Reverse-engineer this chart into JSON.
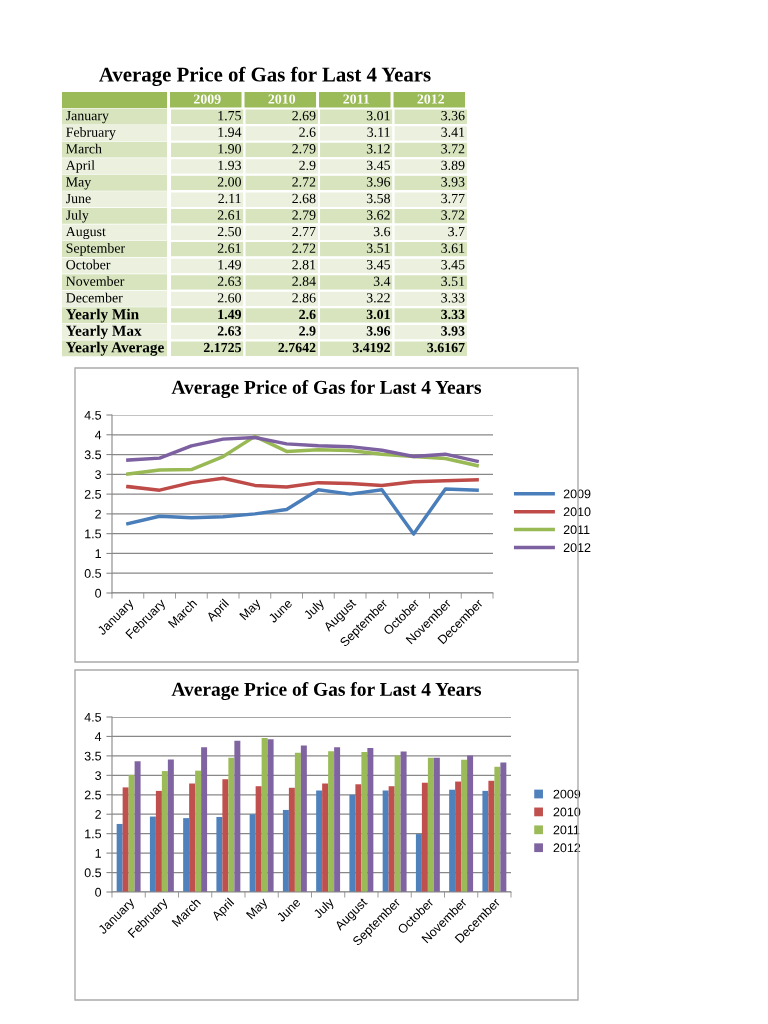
{
  "chart_data": [
    {
      "type": "heatmap",
      "title": "Average Price of Gas for Last 4 Years",
      "categories": [
        "2009",
        "2010",
        "2011",
        "2012"
      ],
      "y_categories": [
        "January",
        "February",
        "March",
        "April",
        "May",
        "June",
        "July",
        "August",
        "September",
        "October",
        "November",
        "December",
        "Yearly Min",
        "Yearly Max",
        "Yearly Average"
      ],
      "cells": [
        [
          1.75,
          2.69,
          3.01,
          3.36
        ],
        [
          1.94,
          2.6,
          3.11,
          3.41
        ],
        [
          1.9,
          2.79,
          3.12,
          3.72
        ],
        [
          1.93,
          2.9,
          3.45,
          3.89
        ],
        [
          2.0,
          2.72,
          3.96,
          3.93
        ],
        [
          2.11,
          2.68,
          3.58,
          3.77
        ],
        [
          2.61,
          2.79,
          3.62,
          3.72
        ],
        [
          2.5,
          2.77,
          3.6,
          3.7
        ],
        [
          2.61,
          2.72,
          3.51,
          3.61
        ],
        [
          1.49,
          2.81,
          3.45,
          3.45
        ],
        [
          2.63,
          2.84,
          3.4,
          3.51
        ],
        [
          2.6,
          2.86,
          3.22,
          3.33
        ],
        [
          1.49,
          2.6,
          3.01,
          3.33
        ],
        [
          2.63,
          2.9,
          3.96,
          3.93
        ],
        [
          2.1725,
          2.7642,
          3.4192,
          3.6167
        ]
      ],
      "cell_labels": [
        [
          "1.75",
          "2.69",
          "3.01",
          "3.36"
        ],
        [
          "1.94",
          "2.6",
          "3.11",
          "3.41"
        ],
        [
          "1.90",
          "2.79",
          "3.12",
          "3.72"
        ],
        [
          "1.93",
          "2.9",
          "3.45",
          "3.89"
        ],
        [
          "2.00",
          "2.72",
          "3.96",
          "3.93"
        ],
        [
          "2.11",
          "2.68",
          "3.58",
          "3.77"
        ],
        [
          "2.61",
          "2.79",
          "3.62",
          "3.72"
        ],
        [
          "2.50",
          "2.77",
          "3.6",
          "3.7"
        ],
        [
          "2.61",
          "2.72",
          "3.51",
          "3.61"
        ],
        [
          "1.49",
          "2.81",
          "3.45",
          "3.45"
        ],
        [
          "2.63",
          "2.84",
          "3.4",
          "3.51"
        ],
        [
          "2.60",
          "2.86",
          "3.22",
          "3.33"
        ],
        [
          "1.49",
          "2.6",
          "3.01",
          "3.33"
        ],
        [
          "2.63",
          "2.9",
          "3.96",
          "3.93"
        ],
        [
          "2.1725",
          "2.7642",
          "3.4192",
          "3.6167"
        ]
      ]
    },
    {
      "type": "line",
      "title": "Average Price of Gas for Last 4 Years",
      "categories": [
        "January",
        "February",
        "March",
        "April",
        "May",
        "June",
        "July",
        "August",
        "September",
        "October",
        "November",
        "December"
      ],
      "series": [
        {
          "name": "2009",
          "color": "#4a7ebb",
          "values": [
            1.75,
            1.94,
            1.9,
            1.93,
            2.0,
            2.11,
            2.61,
            2.5,
            2.61,
            1.49,
            2.63,
            2.6
          ]
        },
        {
          "name": "2010",
          "color": "#be4b48",
          "values": [
            2.69,
            2.6,
            2.79,
            2.9,
            2.72,
            2.68,
            2.79,
            2.77,
            2.72,
            2.81,
            2.84,
            2.86
          ]
        },
        {
          "name": "2011",
          "color": "#98b954",
          "values": [
            3.01,
            3.11,
            3.12,
            3.45,
            3.96,
            3.58,
            3.62,
            3.6,
            3.51,
            3.45,
            3.4,
            3.22
          ]
        },
        {
          "name": "2012",
          "color": "#7d60a0",
          "values": [
            3.36,
            3.41,
            3.72,
            3.89,
            3.93,
            3.77,
            3.72,
            3.7,
            3.61,
            3.45,
            3.51,
            3.33
          ]
        }
      ],
      "ylim": [
        0,
        4.5
      ],
      "yticks": [
        0,
        0.5,
        1,
        1.5,
        2,
        2.5,
        3,
        3.5,
        4,
        4.5
      ],
      "grid": "y",
      "legend": "right",
      "marker": "none",
      "line_style": "solid"
    },
    {
      "type": "bar",
      "title": "Average Price of Gas for Last 4 Years",
      "categories": [
        "January",
        "February",
        "March",
        "April",
        "May",
        "June",
        "July",
        "August",
        "September",
        "October",
        "November",
        "December"
      ],
      "series": [
        {
          "name": "2009",
          "color": "#4f81bd",
          "values": [
            1.75,
            1.94,
            1.9,
            1.93,
            2.0,
            2.11,
            2.61,
            2.5,
            2.61,
            1.49,
            2.63,
            2.6
          ]
        },
        {
          "name": "2010",
          "color": "#c0504d",
          "values": [
            2.69,
            2.6,
            2.79,
            2.9,
            2.72,
            2.68,
            2.79,
            2.77,
            2.72,
            2.81,
            2.84,
            2.86
          ]
        },
        {
          "name": "2011",
          "color": "#9bbb59",
          "values": [
            3.01,
            3.11,
            3.12,
            3.45,
            3.96,
            3.58,
            3.62,
            3.6,
            3.51,
            3.45,
            3.4,
            3.22
          ]
        },
        {
          "name": "2012",
          "color": "#8064a2",
          "values": [
            3.36,
            3.41,
            3.72,
            3.89,
            3.93,
            3.77,
            3.72,
            3.7,
            3.61,
            3.45,
            3.51,
            3.33
          ]
        }
      ],
      "ylim": [
        0,
        4.5
      ],
      "yticks": [
        0,
        0.5,
        1,
        1.5,
        2,
        2.5,
        3,
        3.5,
        4,
        4.5
      ],
      "grid": "y",
      "legend": "right"
    }
  ]
}
